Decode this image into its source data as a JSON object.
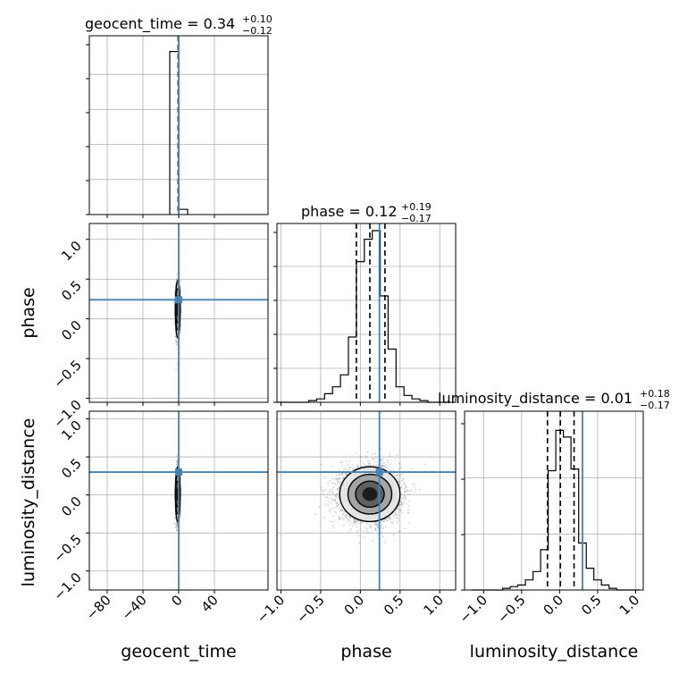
{
  "chart_data": {
    "type": "corner",
    "parameters": [
      "geocent_time",
      "phase",
      "luminosity_distance"
    ],
    "titles": {
      "geocent_time": {
        "label": "geocent_time",
        "median": "0.34",
        "plus": "+0.10",
        "minus": "−0.12"
      },
      "phase": {
        "label": "phase",
        "median": "0.12",
        "plus": "+0.19",
        "minus": "−0.17"
      },
      "luminosity_distance": {
        "label": "luminosity_distance",
        "median": "0.01",
        "plus": "+0.18",
        "minus": "−0.17"
      }
    },
    "title_eq": "=",
    "axis_labels": {
      "x": [
        "geocent_time",
        "phase",
        "luminosity_distance"
      ],
      "y": [
        "phase",
        "luminosity_distance"
      ]
    },
    "ranges": {
      "geocent_time": [
        -100,
        100
      ],
      "phase": [
        -1.05,
        1.2
      ],
      "luminosity_distance": [
        -1.25,
        1.1
      ]
    },
    "ticks": {
      "geocent_time": [
        "−80",
        "−40",
        "0",
        "40"
      ],
      "geocent_time_values": [
        -80,
        -40,
        0,
        40
      ],
      "std": [
        "−1.0",
        "−0.5",
        "0.0",
        "0.5",
        "1.0"
      ],
      "std_values": [
        -1.0,
        -0.5,
        0.0,
        0.5,
        1.0
      ]
    },
    "injection": {
      "geocent_time": 0.0,
      "phase": 0.24,
      "luminosity_distance": 0.3
    },
    "quantile_lines": {
      "geocent_time": [
        0.22,
        0.34,
        0.44
      ],
      "phase": [
        -0.05,
        0.12,
        0.31
      ],
      "luminosity_distance": [
        -0.16,
        0.01,
        0.19
      ]
    },
    "hist_geocent_time": {
      "edges": [
        -10,
        0,
        10
      ],
      "counts": [
        0.95,
        0.03
      ]
    },
    "hist_phase": {
      "edges": [
        -1.05,
        -0.95,
        -0.85,
        -0.75,
        -0.65,
        -0.55,
        -0.45,
        -0.35,
        -0.25,
        -0.15,
        -0.05,
        0.05,
        0.15,
        0.25,
        0.35,
        0.45,
        0.55,
        0.65,
        0.75,
        0.85,
        0.95,
        1.05
      ],
      "counts": [
        0.0,
        0.0,
        0.0,
        0.0,
        0.01,
        0.02,
        0.05,
        0.09,
        0.16,
        0.38,
        0.82,
        0.95,
        1.0,
        0.62,
        0.31,
        0.09,
        0.04,
        0.02,
        0.01,
        0.0,
        0.0
      ]
    },
    "hist_luminosity_distance": {
      "edges": [
        -1.15,
        -1.05,
        -0.95,
        -0.85,
        -0.75,
        -0.65,
        -0.55,
        -0.45,
        -0.35,
        -0.25,
        -0.15,
        -0.05,
        0.05,
        0.15,
        0.25,
        0.35,
        0.45,
        0.55,
        0.65,
        0.75,
        0.85,
        0.95,
        1.05
      ],
      "counts": [
        0.0,
        0.0,
        0.0,
        0.0,
        0.01,
        0.02,
        0.03,
        0.06,
        0.11,
        0.24,
        0.71,
        0.95,
        0.91,
        0.72,
        0.28,
        0.13,
        0.06,
        0.03,
        0.01,
        0.0,
        0.0,
        0.0
      ]
    },
    "scatter_centers": {
      "geocent_time_vs_phase": {
        "x": -1.0,
        "y": 0.12,
        "sx": 1.2,
        "sy": 0.18
      },
      "geocent_time_vs_luminosity_distance": {
        "x": -1.0,
        "y": 0.01,
        "sx": 1.2,
        "sy": 0.18
      },
      "phase_vs_luminosity_distance": {
        "x": 0.12,
        "y": 0.01,
        "sx": 0.19,
        "sy": 0.18
      }
    },
    "grid": true,
    "colors": {
      "hist": "#000000",
      "injection": "#4682b4",
      "points": "#7f7f7f",
      "grid": "#b0b0b0"
    }
  }
}
